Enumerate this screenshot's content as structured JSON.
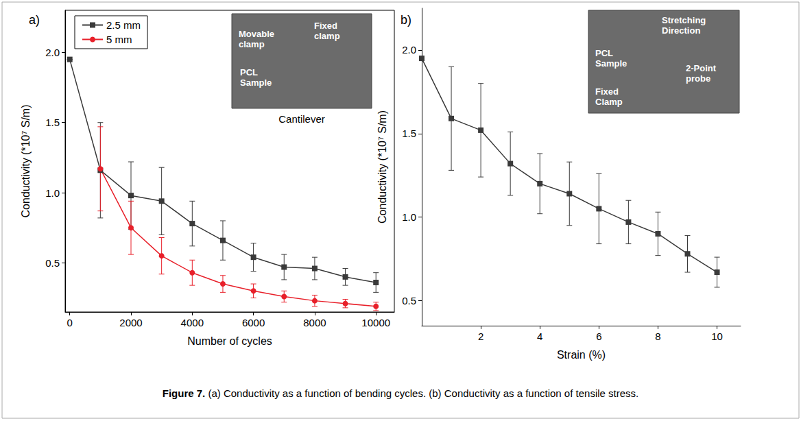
{
  "caption": "Figure 7. (a) Conductivity as a function of bending cycles. (b) Conductivity as a function of tensile stress.",
  "chart_data": [
    {
      "panel": "a)",
      "type": "line",
      "x_label": "Number of cycles",
      "y_label": "Conductivity (*10⁷ S/m)",
      "xlim": [
        -150,
        10600
      ],
      "xticks": [
        0,
        2000,
        4000,
        6000,
        8000,
        10000
      ],
      "ylim": [
        0.15,
        2.3
      ],
      "yticks": [
        0.5,
        {
          "value": 1,
          "label": "1.0"
        },
        1.5,
        {
          "value": 2,
          "label": "2.0"
        }
      ],
      "grid": false,
      "legend": "upper left",
      "x": [
        0,
        1000,
        2000,
        3000,
        4000,
        5000,
        6000,
        7000,
        8000,
        9000,
        10000
      ],
      "series": [
        {
          "name": "2.5 mm",
          "color": "#3a3a3a",
          "marker": "square",
          "values": [
            1.95,
            1.16,
            0.98,
            0.94,
            0.78,
            0.66,
            0.54,
            0.47,
            0.46,
            0.4,
            0.36
          ],
          "errors": [
            0,
            0.34,
            0.24,
            0.24,
            0.16,
            0.14,
            0.1,
            0.09,
            0.08,
            0.06,
            0.07
          ]
        },
        {
          "name": "5 mm",
          "color": "#e8202a",
          "marker": "circle",
          "values": [
            null,
            1.17,
            0.75,
            0.55,
            0.43,
            0.35,
            0.3,
            0.26,
            0.23,
            0.21,
            0.19
          ],
          "errors": [
            null,
            0.3,
            0.19,
            0.13,
            0.09,
            0.06,
            0.05,
            0.04,
            0.04,
            0.03,
            0.03
          ]
        }
      ],
      "annotations": [
        "Movable clamp",
        "Fixed clamp",
        "PCL Sample",
        "Cantilever"
      ]
    },
    {
      "panel": "b)",
      "type": "line",
      "x_label": "Strain (%)",
      "y_label": "Conductivity (*10⁷ S/m)",
      "xlim": [
        0,
        10.8
      ],
      "xticks": [
        2,
        4,
        6,
        8,
        10
      ],
      "ylim": [
        0.35,
        2.25
      ],
      "yticks": [
        0.5,
        {
          "value": 1,
          "label": "1.0"
        },
        1.5,
        {
          "value": 2,
          "label": "2.0"
        }
      ],
      "grid": false,
      "x": [
        0,
        1,
        2,
        3,
        4,
        5,
        6,
        7,
        8,
        9,
        10
      ],
      "color": "#3a3a3a",
      "marker": "square",
      "values": [
        1.95,
        1.59,
        1.52,
        1.32,
        1.2,
        1.14,
        1.05,
        0.97,
        0.9,
        0.78,
        0.67
      ],
      "errors": [
        0,
        0.31,
        0.28,
        0.19,
        0.18,
        0.19,
        0.21,
        0.13,
        0.13,
        0.11,
        0.09
      ],
      "annotations": [
        "Stretching Direction",
        "PCL Sample",
        "2-Point probe",
        "Fixed Clamp"
      ]
    }
  ]
}
